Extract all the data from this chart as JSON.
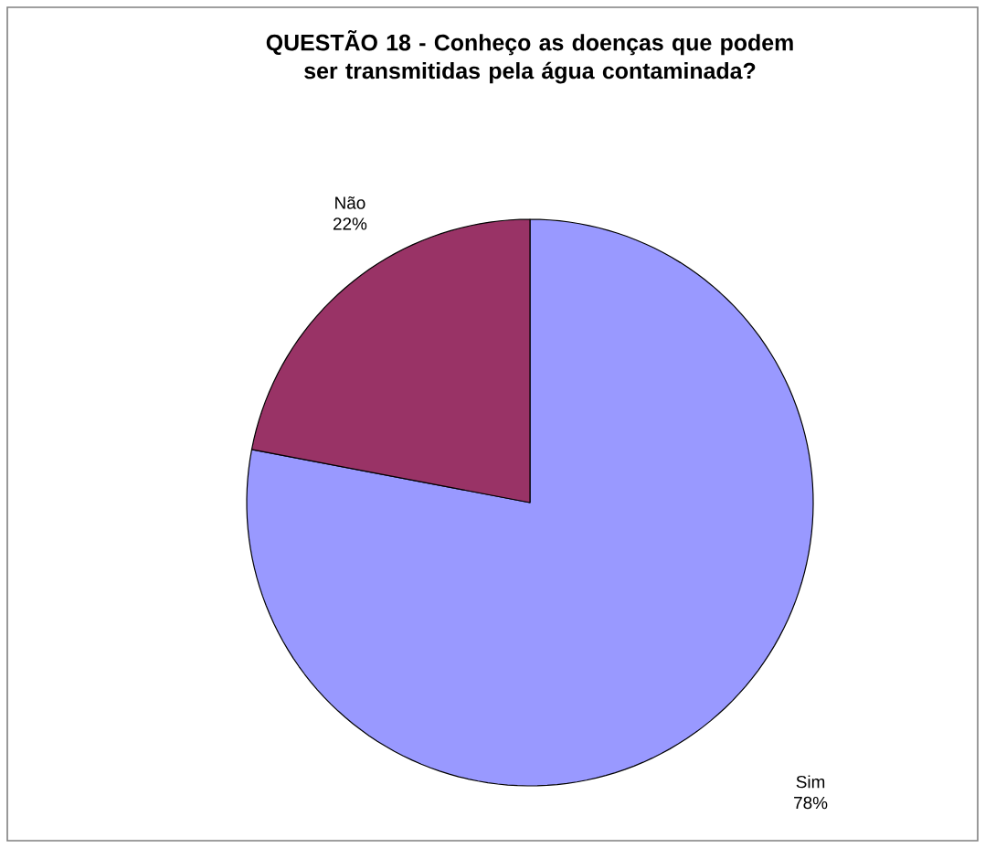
{
  "chart_data": {
    "type": "pie",
    "title": "QUESTÃO 18 - Conheço as doenças que podem ser transmitidas pela água contaminada?",
    "categories": [
      "Sim",
      "Não"
    ],
    "values": [
      78,
      22
    ],
    "colors": [
      "#9999ff",
      "#993366"
    ],
    "value_labels": [
      "78%",
      "22%"
    ]
  }
}
